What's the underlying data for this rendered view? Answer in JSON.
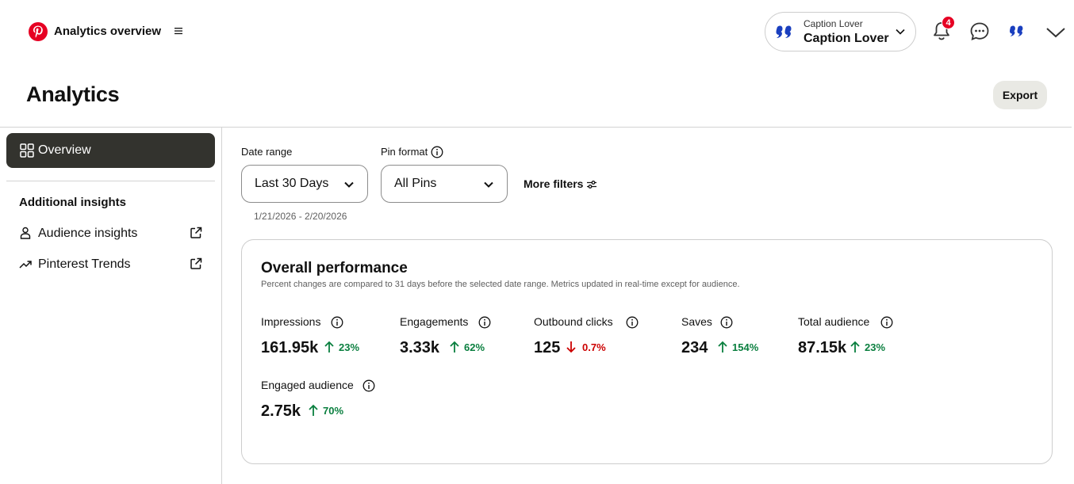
{
  "topbar": {
    "app_title": "Analytics overview",
    "account_sub": "Caption Lover",
    "account_name": "Caption Lover",
    "notification_count": "4"
  },
  "header": {
    "title": "Analytics",
    "export_label": "Export"
  },
  "sidebar": {
    "active_item": "Overview",
    "section_title": "Additional insights",
    "items": [
      {
        "label": "Audience insights",
        "icon": "person-icon"
      },
      {
        "label": "Pinterest Trends",
        "icon": "trend-icon"
      }
    ]
  },
  "filters": {
    "date_range_label": "Date range",
    "date_range_value": "Last 30 Days",
    "pin_format_label": "Pin format",
    "pin_format_value": "All Pins",
    "more_filters_label": "More filters",
    "date_text": "1/21/2026 - 2/20/2026"
  },
  "performance": {
    "title": "Overall performance",
    "subtitle": "Percent changes are compared to 31 days before the selected date range. Metrics updated in real-time except for audience.",
    "metrics": [
      {
        "label": "Impressions",
        "value": "161.95k",
        "change": "23%",
        "direction": "up"
      },
      {
        "label": "Engagements",
        "value": "3.33k",
        "change": "62%",
        "direction": "up"
      },
      {
        "label": "Outbound clicks",
        "value": "125",
        "change": "0.7%",
        "direction": "down"
      },
      {
        "label": "Saves",
        "value": "234",
        "change": "154%",
        "direction": "up"
      },
      {
        "label": "Total audience",
        "value": "87.15k",
        "change": "23%",
        "direction": "up"
      },
      {
        "label": "Engaged audience",
        "value": "2.75k",
        "change": "70%",
        "direction": "up"
      }
    ]
  },
  "colors": {
    "brand": "#e60023",
    "positive": "#0a7f3f",
    "negative": "#cc0000",
    "active_nav": "#33332e"
  }
}
